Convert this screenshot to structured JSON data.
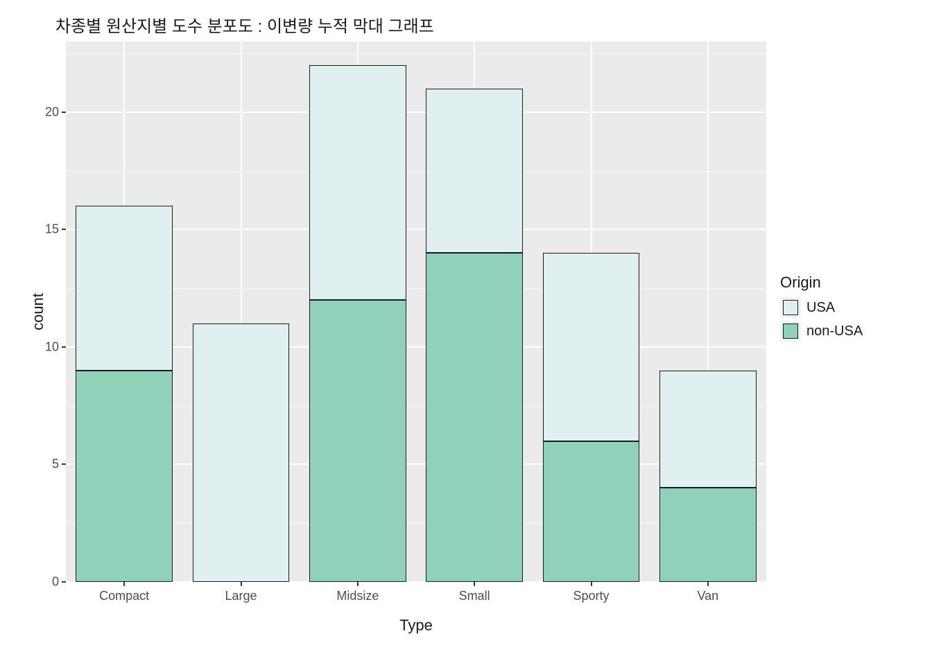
{
  "chart": {
    "type": "stacked-bar",
    "title": "차종별 원산지별 도수 분포도 : 이변량 누적 막대 그래프",
    "title_fontsize": 24,
    "xlabel": "Type",
    "ylabel": "count",
    "label_fontsize": 22,
    "tick_fontsize": 18,
    "background_color": "#ffffff",
    "panel_background": "#ebebeb",
    "grid_color": "#ffffff",
    "ylim": [
      0,
      23
    ],
    "yticks": [
      0,
      5,
      10,
      15,
      20
    ],
    "yminor_step": 2.5,
    "categories": [
      "Compact",
      "Large",
      "Midsize",
      "Small",
      "Sporty",
      "Van"
    ],
    "series": [
      {
        "name": "USA",
        "color": "#e0eff0"
      },
      {
        "name": "non-USA",
        "color": "#8fd1b9"
      }
    ],
    "bar_border_color": "#1a1a1a",
    "bar_width": 0.83,
    "data": {
      "Compact": {
        "non-USA": 9,
        "USA": 7
      },
      "Large": {
        "non-USA": 0,
        "USA": 11
      },
      "Midsize": {
        "non-USA": 12,
        "USA": 10
      },
      "Small": {
        "non-USA": 14,
        "USA": 7
      },
      "Sporty": {
        "non-USA": 6,
        "USA": 8
      },
      "Van": {
        "non-USA": 4,
        "USA": 5
      }
    },
    "legend": {
      "title": "Origin",
      "position": "right",
      "fontsize": 20,
      "title_fontsize": 22,
      "swatch_bg": "#f2f2f2"
    }
  }
}
